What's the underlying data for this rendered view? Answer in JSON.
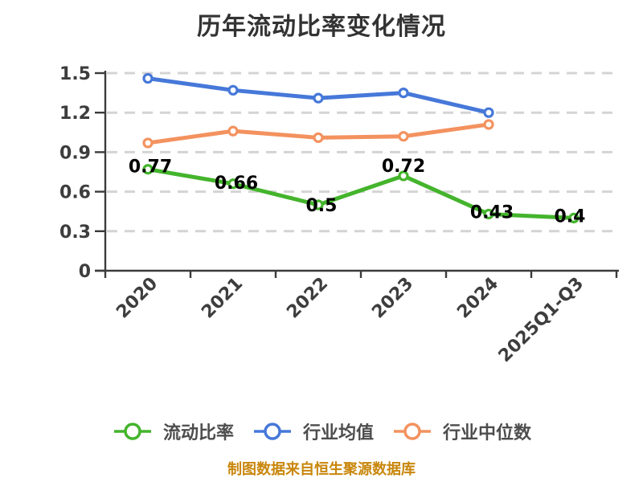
{
  "chart_data": {
    "type": "line",
    "title": "历年流动比率变化情况",
    "categories": [
      "2020",
      "2021",
      "2022",
      "2023",
      "2024",
      "2025Q1-Q3"
    ],
    "yticks": [
      0,
      0.3,
      0.6,
      0.9,
      1.2,
      1.5
    ],
    "ylim": [
      0,
      1.5
    ],
    "grid": "horizontal-dashed",
    "legend_position": "bottom",
    "series": [
      {
        "name": "流动比率",
        "color": "#44B42C",
        "values": [
          0.77,
          0.66,
          0.5,
          0.72,
          0.43,
          0.4
        ],
        "data_labels": true
      },
      {
        "name": "行业均值",
        "color": "#4678D9",
        "values": [
          1.46,
          1.37,
          1.31,
          1.35,
          1.2,
          null
        ],
        "data_labels": false
      },
      {
        "name": "行业中位数",
        "color": "#F3925F",
        "values": [
          0.97,
          1.06,
          1.01,
          1.02,
          1.11,
          null
        ],
        "data_labels": false
      }
    ]
  },
  "footer": {
    "caption": "制图数据来自恒生聚源数据库",
    "caption_color": "#C8860B"
  },
  "theme": {
    "background": "#ffffff",
    "title_color": "#333333",
    "axis_color": "#3b3b3b",
    "grid_color": "#d4d4d4",
    "tick_label_color": "#3d3d3d",
    "data_label_color": "#000000",
    "legend_text_color": "#4d4d4d",
    "marker_fill": "#ffffff"
  }
}
